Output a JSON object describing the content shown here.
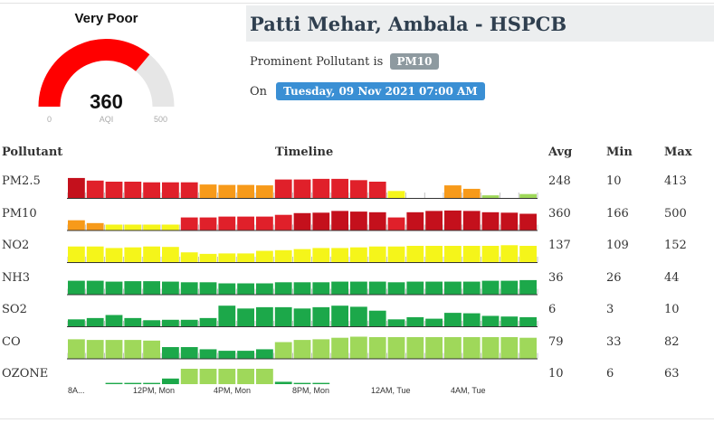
{
  "gauge": {
    "category": "Very Poor",
    "value": "360",
    "unit": "AQI",
    "min": "0",
    "max": "500",
    "fraction": 0.72,
    "color": "#ff0000",
    "track_color": "#e6e6e6"
  },
  "station": {
    "name": "Patti Mehar, Ambala - HSPCB",
    "prominent_label": "Prominent Pollutant is",
    "prominent_value": "PM10",
    "on_label": "On",
    "date": "Tuesday, 09 Nov 2021 07:00 AM"
  },
  "table": {
    "headers": {
      "pollutant": "Pollutant",
      "timeline": "Timeline",
      "avg": "Avg",
      "min": "Min",
      "max": "Max"
    },
    "rows": [
      {
        "name": "PM2.5",
        "avg": "248",
        "min": "10",
        "max": "413",
        "levels": [
          0.92,
          0.8,
          0.75,
          0.75,
          0.72,
          0.72,
          0.72,
          0.62,
          0.6,
          0.6,
          0.58,
          0.85,
          0.85,
          0.88,
          0.88,
          0.82,
          0.75,
          0.32,
          0.0,
          0.0,
          0.58,
          0.42,
          0.12,
          0.0,
          0.18
        ],
        "colors": [
          "#c4101c",
          "#e0202a",
          "#e0202a",
          "#e0202a",
          "#e0202a",
          "#e0202a",
          "#e0202a",
          "#f79a1a",
          "#f79a1a",
          "#f79a1a",
          "#f79a1a",
          "#e0202a",
          "#e0202a",
          "#e0202a",
          "#e0202a",
          "#e0202a",
          "#e0202a",
          "#f5f51a",
          "#ffffff",
          "#ffffff",
          "#f79a1a",
          "#f79a1a",
          "#9fd85a",
          "#ffffff",
          "#9fd85a"
        ]
      },
      {
        "name": "PM10",
        "avg": "360",
        "min": "166",
        "max": "500",
        "levels": [
          0.45,
          0.32,
          0.25,
          0.25,
          0.25,
          0.25,
          0.58,
          0.58,
          0.62,
          0.62,
          0.62,
          0.7,
          0.78,
          0.8,
          0.88,
          0.85,
          0.82,
          0.58,
          0.82,
          0.88,
          0.9,
          0.88,
          0.82,
          0.8,
          0.75
        ],
        "colors": [
          "#f79a1a",
          "#f79a1a",
          "#f5f51a",
          "#f5f51a",
          "#f5f51a",
          "#f5f51a",
          "#e0202a",
          "#e0202a",
          "#e0202a",
          "#e0202a",
          "#e0202a",
          "#e0202a",
          "#c4101c",
          "#c4101c",
          "#c4101c",
          "#c4101c",
          "#c4101c",
          "#e0202a",
          "#c4101c",
          "#c4101c",
          "#c4101c",
          "#c4101c",
          "#c4101c",
          "#c4101c",
          "#c4101c"
        ]
      },
      {
        "name": "NO2",
        "avg": "137",
        "min": "109",
        "max": "152",
        "levels": [
          0.72,
          0.72,
          0.65,
          0.68,
          0.72,
          0.7,
          0.45,
          0.38,
          0.4,
          0.4,
          0.52,
          0.55,
          0.6,
          0.65,
          0.65,
          0.68,
          0.72,
          0.72,
          0.75,
          0.75,
          0.75,
          0.75,
          0.75,
          0.78,
          0.75
        ],
        "colors": [
          "#f5f51a",
          "#f5f51a",
          "#f5f51a",
          "#f5f51a",
          "#f5f51a",
          "#f5f51a",
          "#f5f51a",
          "#f5f51a",
          "#f5f51a",
          "#f5f51a",
          "#f5f51a",
          "#f5f51a",
          "#f5f51a",
          "#f5f51a",
          "#f5f51a",
          "#f5f51a",
          "#f5f51a",
          "#f5f51a",
          "#f5f51a",
          "#f5f51a",
          "#f5f51a",
          "#f5f51a",
          "#f5f51a",
          "#f5f51a",
          "#f5f51a"
        ]
      },
      {
        "name": "NH3",
        "avg": "36",
        "min": "26",
        "max": "44",
        "levels": [
          0.62,
          0.62,
          0.58,
          0.6,
          0.6,
          0.58,
          0.55,
          0.55,
          0.5,
          0.5,
          0.5,
          0.55,
          0.55,
          0.55,
          0.58,
          0.58,
          0.58,
          0.55,
          0.58,
          0.58,
          0.58,
          0.58,
          0.62,
          0.62,
          0.65
        ],
        "colors": [
          "#1ca84a",
          "#1ca84a",
          "#1ca84a",
          "#1ca84a",
          "#1ca84a",
          "#1ca84a",
          "#1ca84a",
          "#1ca84a",
          "#1ca84a",
          "#1ca84a",
          "#1ca84a",
          "#1ca84a",
          "#1ca84a",
          "#1ca84a",
          "#1ca84a",
          "#1ca84a",
          "#1ca84a",
          "#1ca84a",
          "#1ca84a",
          "#1ca84a",
          "#1ca84a",
          "#1ca84a",
          "#1ca84a",
          "#1ca84a",
          "#1ca84a"
        ]
      },
      {
        "name": "SO2",
        "avg": "6",
        "min": "3",
        "max": "10",
        "levels": [
          0.32,
          0.38,
          0.52,
          0.38,
          0.28,
          0.3,
          0.3,
          0.38,
          0.95,
          0.82,
          0.88,
          0.88,
          0.82,
          0.88,
          0.95,
          0.9,
          0.72,
          0.32,
          0.42,
          0.35,
          0.62,
          0.6,
          0.48,
          0.45,
          0.42
        ],
        "colors": [
          "#1ca84a",
          "#1ca84a",
          "#1ca84a",
          "#1ca84a",
          "#1ca84a",
          "#1ca84a",
          "#1ca84a",
          "#1ca84a",
          "#1ca84a",
          "#1ca84a",
          "#1ca84a",
          "#1ca84a",
          "#1ca84a",
          "#1ca84a",
          "#1ca84a",
          "#1ca84a",
          "#1ca84a",
          "#1ca84a",
          "#1ca84a",
          "#1ca84a",
          "#1ca84a",
          "#1ca84a",
          "#1ca84a",
          "#1ca84a",
          "#1ca84a"
        ]
      },
      {
        "name": "CO",
        "avg": "79",
        "min": "33",
        "max": "82",
        "levels": [
          0.88,
          0.85,
          0.85,
          0.85,
          0.82,
          0.52,
          0.52,
          0.42,
          0.35,
          0.35,
          0.42,
          0.75,
          0.85,
          0.88,
          0.95,
          1.0,
          0.98,
          0.98,
          0.98,
          0.98,
          0.98,
          0.98,
          0.98,
          0.98,
          0.95
        ],
        "colors": [
          "#9fd85a",
          "#9fd85a",
          "#9fd85a",
          "#9fd85a",
          "#9fd85a",
          "#1ca84a",
          "#1ca84a",
          "#1ca84a",
          "#1ca84a",
          "#1ca84a",
          "#1ca84a",
          "#9fd85a",
          "#9fd85a",
          "#9fd85a",
          "#9fd85a",
          "#9fd85a",
          "#9fd85a",
          "#9fd85a",
          "#9fd85a",
          "#9fd85a",
          "#9fd85a",
          "#9fd85a",
          "#9fd85a",
          "#9fd85a",
          "#9fd85a"
        ]
      },
      {
        "name": "OZONE",
        "avg": "10",
        "min": "6",
        "max": "63",
        "levels": [
          0.12,
          0.15,
          0.35,
          0.35,
          0.35,
          0.55,
          1.0,
          1.0,
          1.0,
          1.0,
          1.0,
          0.4,
          0.35,
          0.35,
          0.28,
          0.28,
          0.2,
          0.15,
          0.12,
          0.12,
          0.12,
          0.12,
          0.1,
          0.1,
          0.1
        ],
        "colors": [
          "#1ca84a",
          "#1ca84a",
          "#1ca84a",
          "#1ca84a",
          "#1ca84a",
          "#1ca84a",
          "#9fd85a",
          "#9fd85a",
          "#9fd85a",
          "#9fd85a",
          "#9fd85a",
          "#1ca84a",
          "#1ca84a",
          "#1ca84a",
          "#1ca84a",
          "#1ca84a",
          "#1ca84a",
          "#1ca84a",
          "#1ca84a",
          "#1ca84a",
          "#1ca84a",
          "#1ca84a",
          "#1ca84a",
          "#1ca84a",
          "#1ca84a"
        ]
      }
    ]
  },
  "axis": {
    "ticks": [
      "8A...",
      "12PM, Mon",
      "4PM, Mon",
      "8PM, Mon",
      "12AM, Tue",
      "4AM, Tue"
    ]
  }
}
